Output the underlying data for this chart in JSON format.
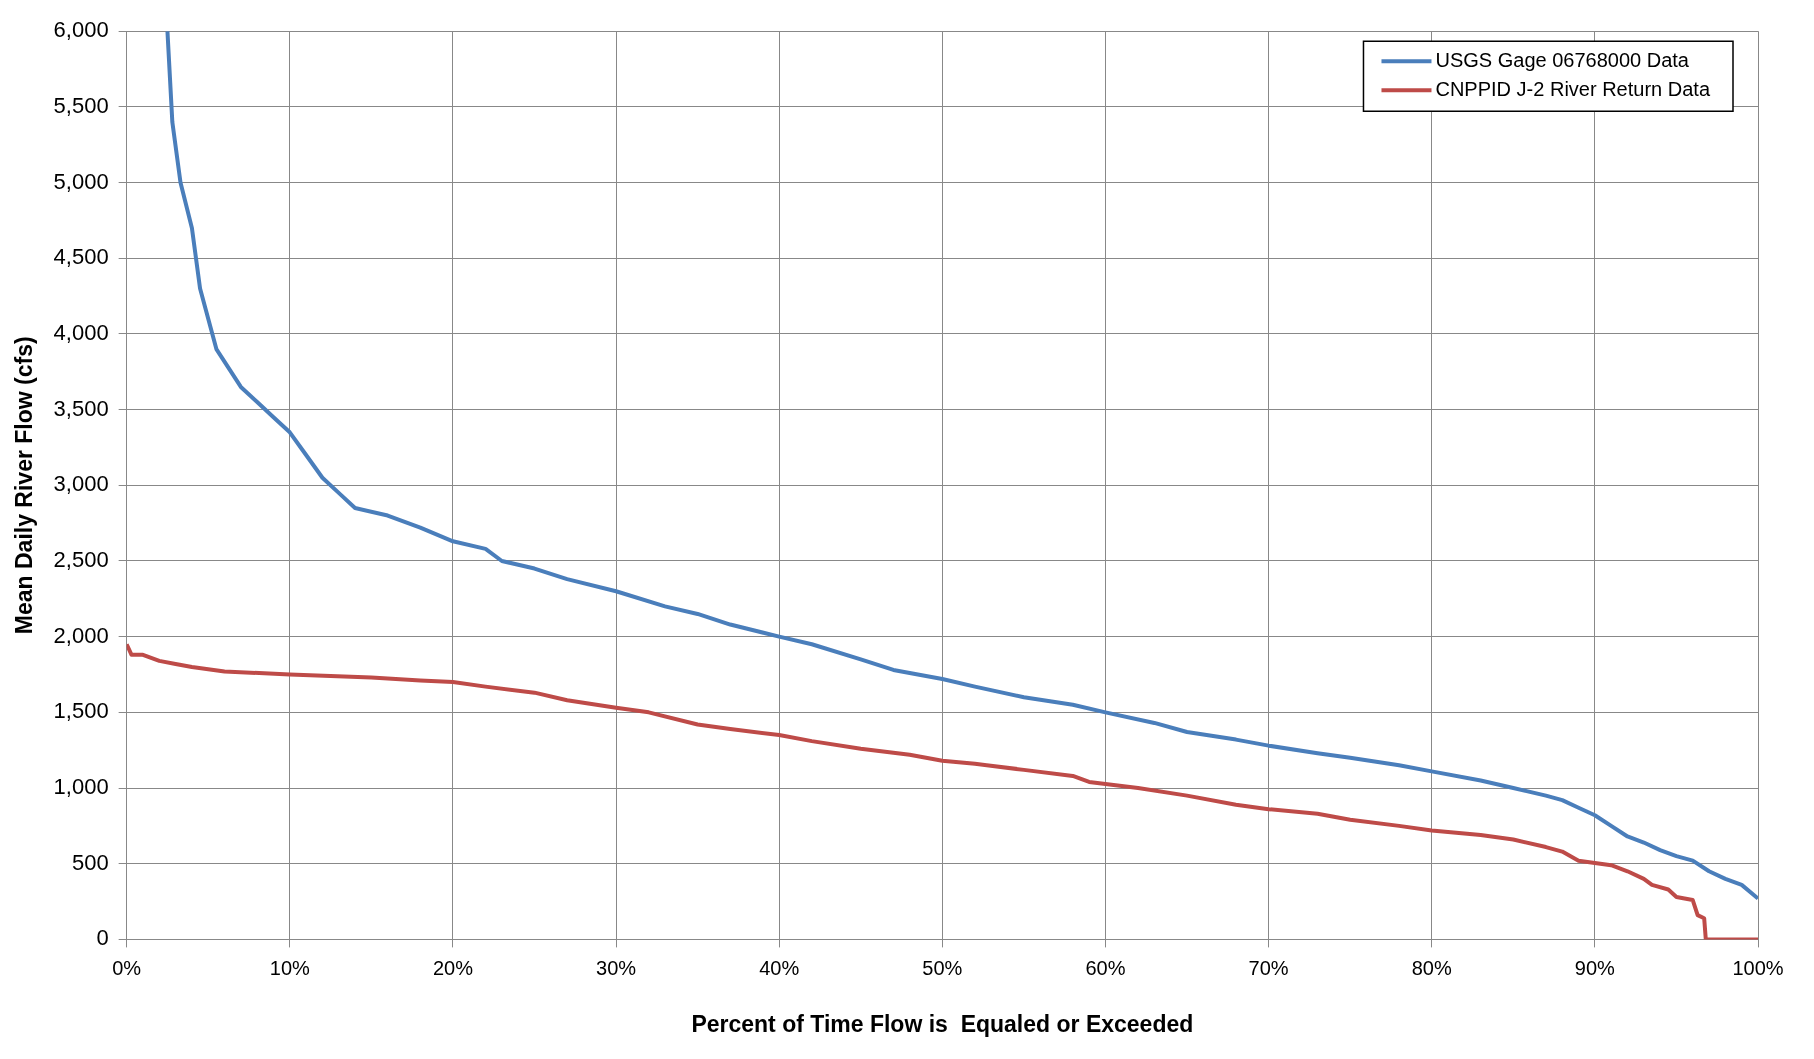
{
  "chart_data": {
    "type": "line",
    "xlabel": "Percent of Time Flow is  Equaled or Exceeded",
    "ylabel": "Mean Daily River Flow (cfs)",
    "xlim": [
      0,
      100
    ],
    "ylim": [
      0,
      6000
    ],
    "xticks": [
      {
        "value": 0,
        "label": "0%"
      },
      {
        "value": 10,
        "label": "10%"
      },
      {
        "value": 20,
        "label": "20%"
      },
      {
        "value": 30,
        "label": "30%"
      },
      {
        "value": 40,
        "label": "40%"
      },
      {
        "value": 50,
        "label": "50%"
      },
      {
        "value": 60,
        "label": "60%"
      },
      {
        "value": 70,
        "label": "70%"
      },
      {
        "value": 80,
        "label": "80%"
      },
      {
        "value": 90,
        "label": "90%"
      },
      {
        "value": 100,
        "label": "100%"
      }
    ],
    "yticks": [
      0,
      500,
      {
        "value": 1000,
        "label": "1,000"
      },
      {
        "value": 1500,
        "label": "1,500"
      },
      {
        "value": 2000,
        "label": "2,000"
      },
      {
        "value": 2500,
        "label": "2,500"
      },
      {
        "value": 3000,
        "label": "3,000"
      },
      {
        "value": 3500,
        "label": "3,500"
      },
      {
        "value": 4000,
        "label": "4,000"
      },
      {
        "value": 4500,
        "label": "4,500"
      },
      {
        "value": 5000,
        "label": "5,000"
      },
      {
        "value": 5500,
        "label": "5,500"
      },
      {
        "value": 6000,
        "label": "6,000"
      }
    ],
    "grid": true,
    "legend": "top right",
    "marker": "none",
    "line_style": "solid",
    "series": [
      {
        "name": "USGS Gage 06768000 Data",
        "color": "#4a7ebb",
        "x": [
          2.5,
          2.8,
          3.3,
          4,
          4.5,
          5.5,
          7,
          8,
          9,
          10,
          11,
          12,
          13,
          14,
          16,
          18,
          20,
          22,
          23,
          25,
          27,
          30,
          33,
          35,
          37,
          40,
          42,
          45,
          47,
          50,
          52,
          55,
          58,
          60,
          63,
          65,
          68,
          70,
          73,
          75,
          78,
          80,
          83,
          85,
          87,
          88,
          89,
          90,
          91,
          92,
          93,
          94,
          95,
          96,
          97,
          98,
          99,
          100
        ],
        "values": [
          6000,
          5400,
          5000,
          4700,
          4300,
          3900,
          3650,
          3550,
          3450,
          3350,
          3200,
          3050,
          2950,
          2850,
          2800,
          2720,
          2630,
          2580,
          2500,
          2450,
          2380,
          2300,
          2200,
          2150,
          2080,
          2000,
          1950,
          1850,
          1780,
          1720,
          1670,
          1600,
          1550,
          1500,
          1430,
          1370,
          1320,
          1280,
          1230,
          1200,
          1150,
          1110,
          1050,
          1000,
          950,
          920,
          870,
          820,
          750,
          680,
          640,
          590,
          550,
          520,
          450,
          400,
          360,
          270
        ]
      },
      {
        "name": "CNPPID J-2 River Return Data",
        "color": "#be4b48",
        "x": [
          0,
          0.3,
          1,
          2,
          3,
          4,
          6,
          10,
          15,
          18,
          20,
          22,
          25,
          27,
          30,
          32,
          35,
          37,
          40,
          42,
          45,
          48,
          50,
          52,
          55,
          58,
          59,
          62,
          65,
          68,
          70,
          73,
          75,
          78,
          80,
          83,
          85,
          87,
          88,
          89,
          91,
          92,
          93,
          93.5,
          94.5,
          95,
          96,
          96.3,
          96.7,
          96.8,
          100
        ],
        "values": [
          1950,
          1880,
          1880,
          1840,
          1820,
          1800,
          1770,
          1750,
          1730,
          1710,
          1700,
          1670,
          1630,
          1580,
          1530,
          1500,
          1420,
          1390,
          1350,
          1310,
          1260,
          1220,
          1180,
          1160,
          1120,
          1080,
          1040,
          1000,
          950,
          890,
          860,
          830,
          790,
          750,
          720,
          690,
          660,
          610,
          580,
          520,
          490,
          450,
          400,
          360,
          330,
          280,
          260,
          160,
          140,
          0,
          0
        ]
      }
    ]
  }
}
